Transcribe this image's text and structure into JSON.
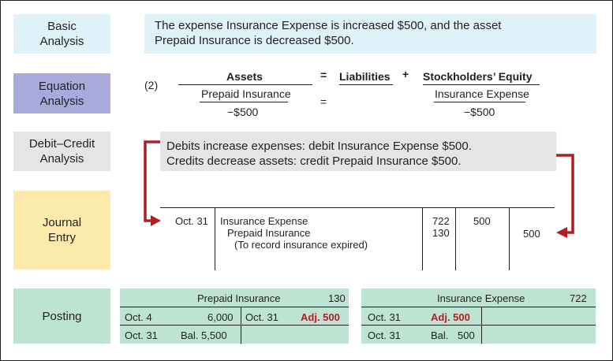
{
  "labels": {
    "basic": "Basic\nAnalysis",
    "equation": "Equation\nAnalysis",
    "debit_credit": "Debit–Credit\nAnalysis",
    "journal": "Journal\nEntry",
    "posting": "Posting"
  },
  "basic_analysis": {
    "line1": "The expense Insurance Expense is increased $500, and the asset",
    "line2": "Prepaid Insurance is decreased $500."
  },
  "equation": {
    "number": "(2)",
    "assets": "Assets",
    "equals": "=",
    "liabilities": "Liabilities",
    "plus": "+",
    "equity": "Stockholders’ Equity",
    "left_account": "Prepaid Insurance",
    "left_amount": "−$500",
    "mid_equals": "=",
    "right_account": "Insurance Expense",
    "right_amount": "−$500"
  },
  "debit_credit": {
    "line1": "Debits increase expenses: debit Insurance Expense $500.",
    "line2": "Credits decrease assets: credit Prepaid Insurance $500."
  },
  "journal": {
    "date": "Oct. 31",
    "debit_account": "Insurance Expense",
    "credit_account": "Prepaid Insurance",
    "explanation": "(To record insurance expired)",
    "debit_ref": "722",
    "credit_ref": "130",
    "debit_amount": "500",
    "credit_amount": "500"
  },
  "ledger_prepaid": {
    "title": "Prepaid Insurance",
    "number": "130",
    "row1_date": "Oct.  4",
    "row1_amount": "6,000",
    "row1_cr_date": "Oct. 31",
    "row1_cr_amount": "Adj. 500",
    "row2_date": "Oct. 31",
    "row2_bal": "Bal. 5,500"
  },
  "ledger_expense": {
    "title": "Insurance Expense",
    "number": "722",
    "row1_date": "Oct. 31",
    "row1_amount": "Adj. 500",
    "row2_date": "Oct. 31",
    "row2_bal_label": "Bal.",
    "row2_bal": "500"
  },
  "colors": {
    "basic": "#dff2fa",
    "equation": "#a8aadc",
    "debit_credit": "#e4e5e6",
    "journal": "#fbeaaa",
    "posting": "#bde3d2",
    "arrow": "#b11f24"
  }
}
